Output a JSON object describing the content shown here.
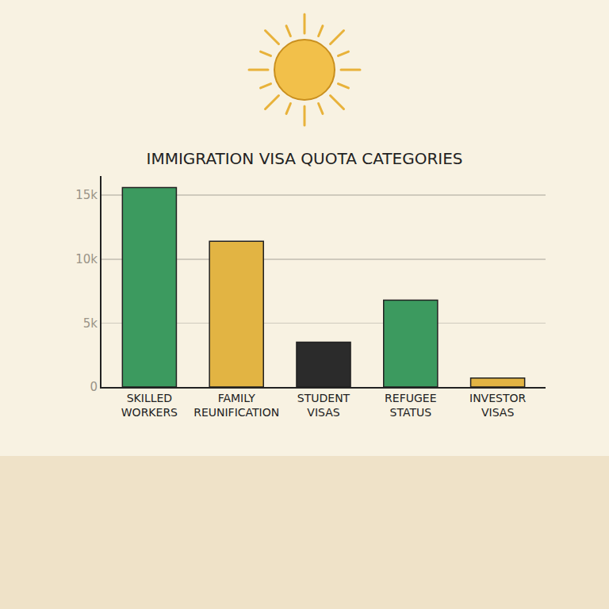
{
  "chart_data": {
    "type": "bar",
    "title": "IMMIGRATION VISA QUOTA CATEGORIES",
    "categories": [
      "SKILLED WORKERS",
      "FAMILY REUNIFICATION",
      "STUDENT VISAS",
      "REFUGEE STATUS",
      "INVESTOR VISAS"
    ],
    "values": [
      15600,
      11400,
      3500,
      6800,
      700
    ],
    "colors": [
      "#3c9a5f",
      "#e2b443",
      "#2b2b2b",
      "#3c9a5f",
      "#e2b443"
    ],
    "ylim": [
      0,
      16500
    ],
    "yticks": [
      0,
      {
        "value": 5000,
        "label": "5k"
      },
      {
        "value": 10000,
        "label": "10k"
      },
      {
        "value": 15000,
        "label": "15k"
      }
    ],
    "grid": true
  }
}
